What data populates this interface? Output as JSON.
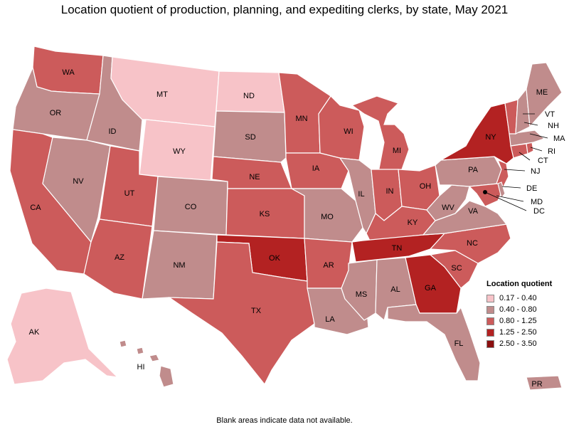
{
  "title": "Location quotient of production, planning, and expediting clerks, by state, May 2021",
  "footnote": "Blank areas indicate data not available.",
  "legend": {
    "title": "Location quotient",
    "bins": [
      {
        "label": "0.17 - 0.40",
        "color": "#f7c3c8"
      },
      {
        "label": "0.40 - 0.80",
        "color": "#c08c8c"
      },
      {
        "label": "0.80 - 1.25",
        "color": "#cc5b5b"
      },
      {
        "label": "1.25 - 2.50",
        "color": "#b32222"
      },
      {
        "label": "2.50 - 3.50",
        "color": "#8b0f0f"
      }
    ]
  },
  "states": [
    {
      "id": "WA",
      "label": "WA",
      "bin": 2
    },
    {
      "id": "OR",
      "label": "OR",
      "bin": 1
    },
    {
      "id": "CA",
      "label": "CA",
      "bin": 2
    },
    {
      "id": "ID",
      "label": "ID",
      "bin": 1
    },
    {
      "id": "NV",
      "label": "NV",
      "bin": 1
    },
    {
      "id": "MT",
      "label": "MT",
      "bin": 0
    },
    {
      "id": "WY",
      "label": "WY",
      "bin": 0
    },
    {
      "id": "UT",
      "label": "UT",
      "bin": 2
    },
    {
      "id": "AZ",
      "label": "AZ",
      "bin": 2
    },
    {
      "id": "CO",
      "label": "CO",
      "bin": 1
    },
    {
      "id": "NM",
      "label": "NM",
      "bin": 1
    },
    {
      "id": "ND",
      "label": "ND",
      "bin": 0
    },
    {
      "id": "SD",
      "label": "SD",
      "bin": 1
    },
    {
      "id": "NE",
      "label": "NE",
      "bin": 2
    },
    {
      "id": "KS",
      "label": "KS",
      "bin": 2
    },
    {
      "id": "OK",
      "label": "OK",
      "bin": 3
    },
    {
      "id": "TX",
      "label": "TX",
      "bin": 2
    },
    {
      "id": "MN",
      "label": "MN",
      "bin": 2
    },
    {
      "id": "IA",
      "label": "IA",
      "bin": 2
    },
    {
      "id": "MO",
      "label": "MO",
      "bin": 1
    },
    {
      "id": "AR",
      "label": "AR",
      "bin": 2
    },
    {
      "id": "LA",
      "label": "LA",
      "bin": 1
    },
    {
      "id": "WI",
      "label": "WI",
      "bin": 2
    },
    {
      "id": "IL",
      "label": "IL",
      "bin": 1
    },
    {
      "id": "MI",
      "label": "MI",
      "bin": 2
    },
    {
      "id": "IN",
      "label": "IN",
      "bin": 2
    },
    {
      "id": "OH",
      "label": "OH",
      "bin": 2
    },
    {
      "id": "KY",
      "label": "KY",
      "bin": 2
    },
    {
      "id": "TN",
      "label": "TN",
      "bin": 3
    },
    {
      "id": "MS",
      "label": "MS",
      "bin": 1
    },
    {
      "id": "AL",
      "label": "AL",
      "bin": 1
    },
    {
      "id": "GA",
      "label": "GA",
      "bin": 3
    },
    {
      "id": "FL",
      "label": "FL",
      "bin": 1
    },
    {
      "id": "SC",
      "label": "SC",
      "bin": 2
    },
    {
      "id": "NC",
      "label": "NC",
      "bin": 2
    },
    {
      "id": "VA",
      "label": "VA",
      "bin": 1
    },
    {
      "id": "WV",
      "label": "WV",
      "bin": 1
    },
    {
      "id": "PA",
      "label": "PA",
      "bin": 1
    },
    {
      "id": "NY",
      "label": "NY",
      "bin": 3
    },
    {
      "id": "NJ",
      "label": "NJ",
      "bin": 2
    },
    {
      "id": "DE",
      "label": "DE",
      "bin": 1
    },
    {
      "id": "MD",
      "label": "MD",
      "bin": 2
    },
    {
      "id": "DC",
      "label": "DC",
      "bin": 1
    },
    {
      "id": "CT",
      "label": "CT",
      "bin": 2
    },
    {
      "id": "RI",
      "label": "RI",
      "bin": 2
    },
    {
      "id": "MA",
      "label": "MA",
      "bin": 1
    },
    {
      "id": "VT",
      "label": "VT",
      "bin": 2
    },
    {
      "id": "NH",
      "label": "NH",
      "bin": 1
    },
    {
      "id": "ME",
      "label": "ME",
      "bin": 1
    },
    {
      "id": "AK",
      "label": "AK",
      "bin": 0
    },
    {
      "id": "HI",
      "label": "HI",
      "bin": 1
    },
    {
      "id": "PR",
      "label": "PR",
      "bin": 1
    }
  ]
}
